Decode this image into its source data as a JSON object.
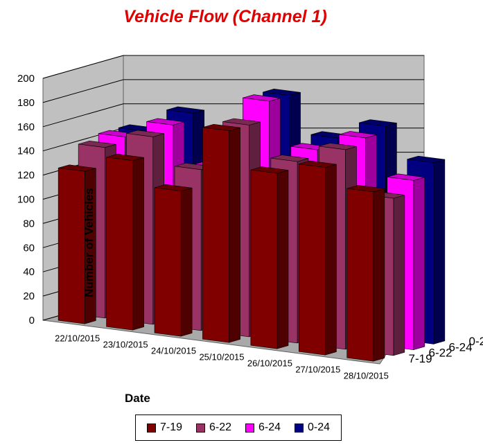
{
  "chart_data": {
    "type": "bar",
    "title": "Vehicle Flow (Channel 1)",
    "xlabel": "Date",
    "ylabel": "Number of Vehicles",
    "ylim": [
      0,
      200
    ],
    "yticks": [
      0,
      20,
      40,
      60,
      80,
      100,
      120,
      140,
      160,
      180,
      200
    ],
    "categories": [
      "22/10/2015",
      "23/10/2015",
      "24/10/2015",
      "25/10/2015",
      "26/10/2015",
      "27/10/2015",
      "28/10/2015"
    ],
    "series": [
      {
        "name": "7-19",
        "color": "#800000",
        "values": [
          126,
          140,
          120,
          175,
          145,
          155,
          140
        ]
      },
      {
        "name": "6-22",
        "color": "#993366",
        "values": [
          141,
          155,
          133,
          175,
          150,
          165,
          130
        ]
      },
      {
        "name": "6-24",
        "color": "#ff00ff",
        "values": [
          145,
          160,
          130,
          190,
          155,
          170,
          140
        ]
      },
      {
        "name": "0-24",
        "color": "#000080",
        "values": [
          145,
          165,
          135,
          190,
          160,
          175,
          150
        ]
      }
    ],
    "grid": true,
    "legend_position": "bottom"
  }
}
